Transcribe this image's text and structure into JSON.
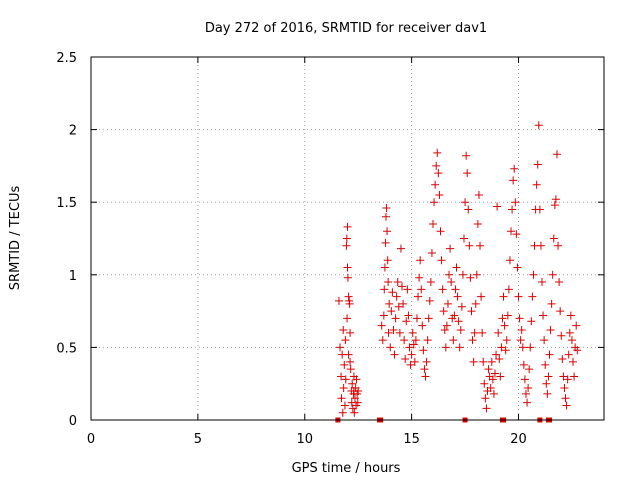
{
  "chart_data": {
    "type": "scatter",
    "title": "Day 272 of 2016, SRMTID for receiver dav1",
    "xlabel": "GPS time / hours",
    "ylabel": "SRMTID / TECUs",
    "xlim": [
      0,
      24
    ],
    "ylim": [
      0,
      2.5
    ],
    "xticks": [
      "0",
      "5",
      "10",
      "15",
      "20"
    ],
    "yticks": [
      "0",
      "0.5",
      "1",
      "1.5",
      "2",
      "2.5"
    ],
    "grid": true,
    "marker": "+",
    "series": [
      {
        "color": "#dd0000",
        "points": [
          [
            11.6,
            0.82
          ],
          [
            11.65,
            0.5
          ],
          [
            11.7,
            0.3
          ],
          [
            11.72,
            0.15
          ],
          [
            11.75,
            0.45
          ],
          [
            11.78,
            0.05
          ],
          [
            11.8,
            0.62
          ],
          [
            11.82,
            0.22
          ],
          [
            11.85,
            0.38
          ],
          [
            11.88,
            0.1
          ],
          [
            11.9,
            0.55
          ],
          [
            11.92,
            0.28
          ],
          [
            11.95,
            1.2
          ],
          [
            11.97,
            1.25
          ],
          [
            12.0,
            1.33
          ],
          [
            12.0,
            1.05
          ],
          [
            12.02,
            0.98
          ],
          [
            12.05,
            0.85
          ],
          [
            12.08,
            0.82
          ],
          [
            12.1,
            0.8
          ],
          [
            12.12,
            0.6
          ],
          [
            12.15,
            0.35
          ],
          [
            12.18,
            0.2
          ],
          [
            12.2,
            0.12
          ],
          [
            12.22,
            0.25
          ],
          [
            12.25,
            0.08
          ],
          [
            12.28,
            0.18
          ],
          [
            12.3,
            0.3
          ],
          [
            12.32,
            0.05
          ],
          [
            12.35,
            0.15
          ],
          [
            12.38,
            0.22
          ],
          [
            12.4,
            0.1
          ],
          [
            12.42,
            0.28
          ],
          [
            12.45,
            0.18
          ],
          [
            12.48,
            0.12
          ],
          [
            12.5,
            0.2
          ],
          [
            12.05,
            0.45
          ],
          [
            11.98,
            0.7
          ],
          [
            12.12,
            0.4
          ],
          [
            12.3,
            0.2
          ],
          [
            13.6,
            0.65
          ],
          [
            13.65,
            0.55
          ],
          [
            13.7,
            0.72
          ],
          [
            13.72,
            0.9
          ],
          [
            13.75,
            1.05
          ],
          [
            13.78,
            1.22
          ],
          [
            13.8,
            1.4
          ],
          [
            13.82,
            1.46
          ],
          [
            13.85,
            1.3
          ],
          [
            13.88,
            1.1
          ],
          [
            13.9,
            0.95
          ],
          [
            13.92,
            0.6
          ],
          [
            13.95,
            0.8
          ],
          [
            14.0,
            0.5
          ],
          [
            14.05,
            0.75
          ],
          [
            14.1,
            0.88
          ],
          [
            14.15,
            0.62
          ],
          [
            14.2,
            0.45
          ],
          [
            14.25,
            0.7
          ],
          [
            14.3,
            0.85
          ],
          [
            14.35,
            0.95
          ],
          [
            14.4,
            0.78
          ],
          [
            14.45,
            0.6
          ],
          [
            14.5,
            1.18
          ],
          [
            14.55,
            0.92
          ],
          [
            14.6,
            0.8
          ],
          [
            14.65,
            0.55
          ],
          [
            14.7,
            0.42
          ],
          [
            14.75,
            0.68
          ],
          [
            14.8,
            0.9
          ],
          [
            14.85,
            0.72
          ],
          [
            14.9,
            0.5
          ],
          [
            14.95,
            0.38
          ],
          [
            15.0,
            0.45
          ],
          [
            15.05,
            0.6
          ],
          [
            15.1,
            0.52
          ],
          [
            15.15,
            0.4
          ],
          [
            15.2,
            0.55
          ],
          [
            15.25,
            0.7
          ],
          [
            15.3,
            0.85
          ],
          [
            15.35,
            0.98
          ],
          [
            15.4,
            1.1
          ],
          [
            15.45,
            0.9
          ],
          [
            15.5,
            0.65
          ],
          [
            15.55,
            0.48
          ],
          [
            15.6,
            0.35
          ],
          [
            15.65,
            0.3
          ],
          [
            15.7,
            0.4
          ],
          [
            15.75,
            0.55
          ],
          [
            15.8,
            0.7
          ],
          [
            15.85,
            0.82
          ],
          [
            15.9,
            0.95
          ],
          [
            15.95,
            1.15
          ],
          [
            16.0,
            1.35
          ],
          [
            16.05,
            1.5
          ],
          [
            16.1,
            1.62
          ],
          [
            16.15,
            1.75
          ],
          [
            16.2,
            1.84
          ],
          [
            16.25,
            1.7
          ],
          [
            16.3,
            1.55
          ],
          [
            16.35,
            1.3
          ],
          [
            16.4,
            1.1
          ],
          [
            16.45,
            0.9
          ],
          [
            16.5,
            0.75
          ],
          [
            16.55,
            0.62
          ],
          [
            16.6,
            0.5
          ],
          [
            16.65,
            0.65
          ],
          [
            16.7,
            0.8
          ],
          [
            16.75,
            1.0
          ],
          [
            16.8,
            1.18
          ],
          [
            16.85,
            0.95
          ],
          [
            16.9,
            0.7
          ],
          [
            16.95,
            0.55
          ],
          [
            17.0,
            0.72
          ],
          [
            17.05,
            0.9
          ],
          [
            17.1,
            1.05
          ],
          [
            17.15,
            0.85
          ],
          [
            17.2,
            0.68
          ],
          [
            17.25,
            0.5
          ],
          [
            17.3,
            0.62
          ],
          [
            17.35,
            0.78
          ],
          [
            17.4,
            1.0
          ],
          [
            17.45,
            1.25
          ],
          [
            17.5,
            1.5
          ],
          [
            17.55,
            1.82
          ],
          [
            17.6,
            1.7
          ],
          [
            17.65,
            1.45
          ],
          [
            17.7,
            1.2
          ],
          [
            17.75,
            0.98
          ],
          [
            17.8,
            0.75
          ],
          [
            17.85,
            0.55
          ],
          [
            17.9,
            0.4
          ],
          [
            17.95,
            0.6
          ],
          [
            18.0,
            0.8
          ],
          [
            18.05,
            1.0
          ],
          [
            18.1,
            1.35
          ],
          [
            18.15,
            1.55
          ],
          [
            18.2,
            1.2
          ],
          [
            18.25,
            0.85
          ],
          [
            18.3,
            0.6
          ],
          [
            18.35,
            0.4
          ],
          [
            18.4,
            0.25
          ],
          [
            18.45,
            0.15
          ],
          [
            18.5,
            0.08
          ],
          [
            18.55,
            0.2
          ],
          [
            18.6,
            0.35
          ],
          [
            18.65,
            0.3
          ],
          [
            18.7,
            0.22
          ],
          [
            18.75,
            0.4
          ],
          [
            18.8,
            0.28
          ],
          [
            18.85,
            0.18
          ],
          [
            18.9,
            0.32
          ],
          [
            18.95,
            0.45
          ],
          [
            19.0,
            1.47
          ],
          [
            19.05,
            0.6
          ],
          [
            19.1,
            0.42
          ],
          [
            19.15,
            0.3
          ],
          [
            19.2,
            0.5
          ],
          [
            19.25,
            0.7
          ],
          [
            19.3,
            0.85
          ],
          [
            19.35,
            0.65
          ],
          [
            19.4,
            0.48
          ],
          [
            19.45,
            0.55
          ],
          [
            19.5,
            0.72
          ],
          [
            19.55,
            0.9
          ],
          [
            19.6,
            1.1
          ],
          [
            19.65,
            1.3
          ],
          [
            19.7,
            1.45
          ],
          [
            19.75,
            1.65
          ],
          [
            19.8,
            1.73
          ],
          [
            19.85,
            1.5
          ],
          [
            19.9,
            1.28
          ],
          [
            19.95,
            1.05
          ],
          [
            20.0,
            0.85
          ],
          [
            20.05,
            0.7
          ],
          [
            20.1,
            0.55
          ],
          [
            20.15,
            0.62
          ],
          [
            20.2,
            0.5
          ],
          [
            20.25,
            0.38
          ],
          [
            20.3,
            0.28
          ],
          [
            20.35,
            0.18
          ],
          [
            20.4,
            0.12
          ],
          [
            20.45,
            0.22
          ],
          [
            20.5,
            0.35
          ],
          [
            20.55,
            0.5
          ],
          [
            20.6,
            0.68
          ],
          [
            20.65,
            0.85
          ],
          [
            20.7,
            1.0
          ],
          [
            20.75,
            1.2
          ],
          [
            20.8,
            1.45
          ],
          [
            20.85,
            1.62
          ],
          [
            20.9,
            1.76
          ],
          [
            20.95,
            2.03
          ],
          [
            21.0,
            1.45
          ],
          [
            21.05,
            1.2
          ],
          [
            21.1,
            0.95
          ],
          [
            21.15,
            0.72
          ],
          [
            21.2,
            0.55
          ],
          [
            21.25,
            0.38
          ],
          [
            21.3,
            0.25
          ],
          [
            21.35,
            0.18
          ],
          [
            21.4,
            0.3
          ],
          [
            21.45,
            0.45
          ],
          [
            21.5,
            0.62
          ],
          [
            21.55,
            0.8
          ],
          [
            21.6,
            1.0
          ],
          [
            21.65,
            1.25
          ],
          [
            21.7,
            1.48
          ],
          [
            21.75,
            1.52
          ],
          [
            21.8,
            1.83
          ],
          [
            21.85,
            1.2
          ],
          [
            21.9,
            0.95
          ],
          [
            21.95,
            0.75
          ],
          [
            22.0,
            0.58
          ],
          [
            22.05,
            0.42
          ],
          [
            22.1,
            0.3
          ],
          [
            22.15,
            0.22
          ],
          [
            22.2,
            0.15
          ],
          [
            22.25,
            0.1
          ],
          [
            22.3,
            0.28
          ],
          [
            22.35,
            0.45
          ],
          [
            22.4,
            0.6
          ],
          [
            22.45,
            0.72
          ],
          [
            22.5,
            0.55
          ],
          [
            22.55,
            0.4
          ],
          [
            22.6,
            0.3
          ],
          [
            22.65,
            0.5
          ],
          [
            22.7,
            0.65
          ],
          [
            22.75,
            0.48
          ]
        ]
      }
    ],
    "zero_points_x": [
      11.55,
      13.5,
      13.55,
      17.5,
      19.25,
      19.3,
      21.0,
      21.4,
      21.45
    ]
  }
}
